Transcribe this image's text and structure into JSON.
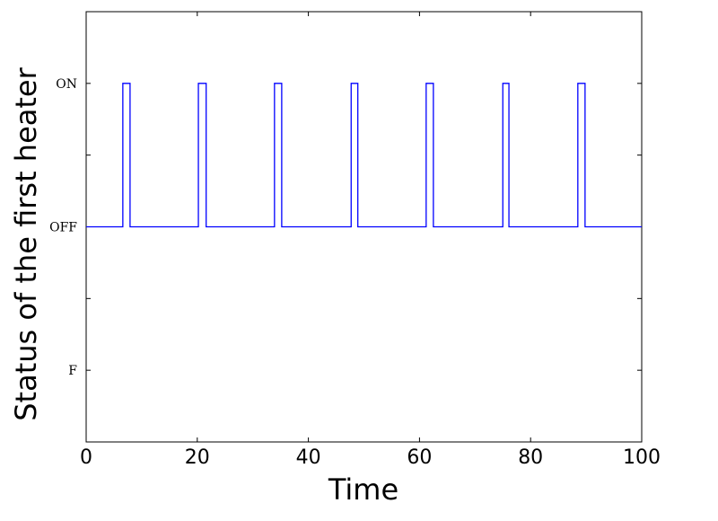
{
  "chart_data": {
    "type": "line",
    "xlabel": "Time",
    "ylabel": "Status of the first heater",
    "xlim": [
      0,
      100
    ],
    "xticks": [
      0,
      20,
      40,
      60,
      80,
      100
    ],
    "ylim": [
      -1.5,
      1.5
    ],
    "yticks": [
      {
        "value": -1,
        "label": "F"
      },
      {
        "value": -0.5,
        "label": null
      },
      {
        "value": 0,
        "label": "OFF"
      },
      {
        "value": 0.5,
        "label": null
      },
      {
        "value": 1,
        "label": "ON"
      }
    ],
    "series": [
      {
        "color": "#0000ff",
        "x": [
          0,
          6.6,
          6.6,
          7.9,
          7.9,
          20.2,
          20.2,
          21.6,
          21.6,
          33.9,
          33.9,
          35.2,
          35.2,
          47.7,
          47.7,
          48.9,
          48.9,
          61.2,
          61.2,
          62.5,
          62.5,
          75.0,
          75.0,
          76.1,
          76.1,
          88.5,
          88.5,
          89.8,
          89.8,
          100
        ],
        "values": [
          0,
          0,
          1,
          1,
          0,
          0,
          1,
          1,
          0,
          0,
          1,
          1,
          0,
          0,
          1,
          1,
          0,
          0,
          1,
          1,
          0,
          0,
          1,
          1,
          0,
          0,
          1,
          1,
          0,
          0
        ]
      }
    ]
  }
}
